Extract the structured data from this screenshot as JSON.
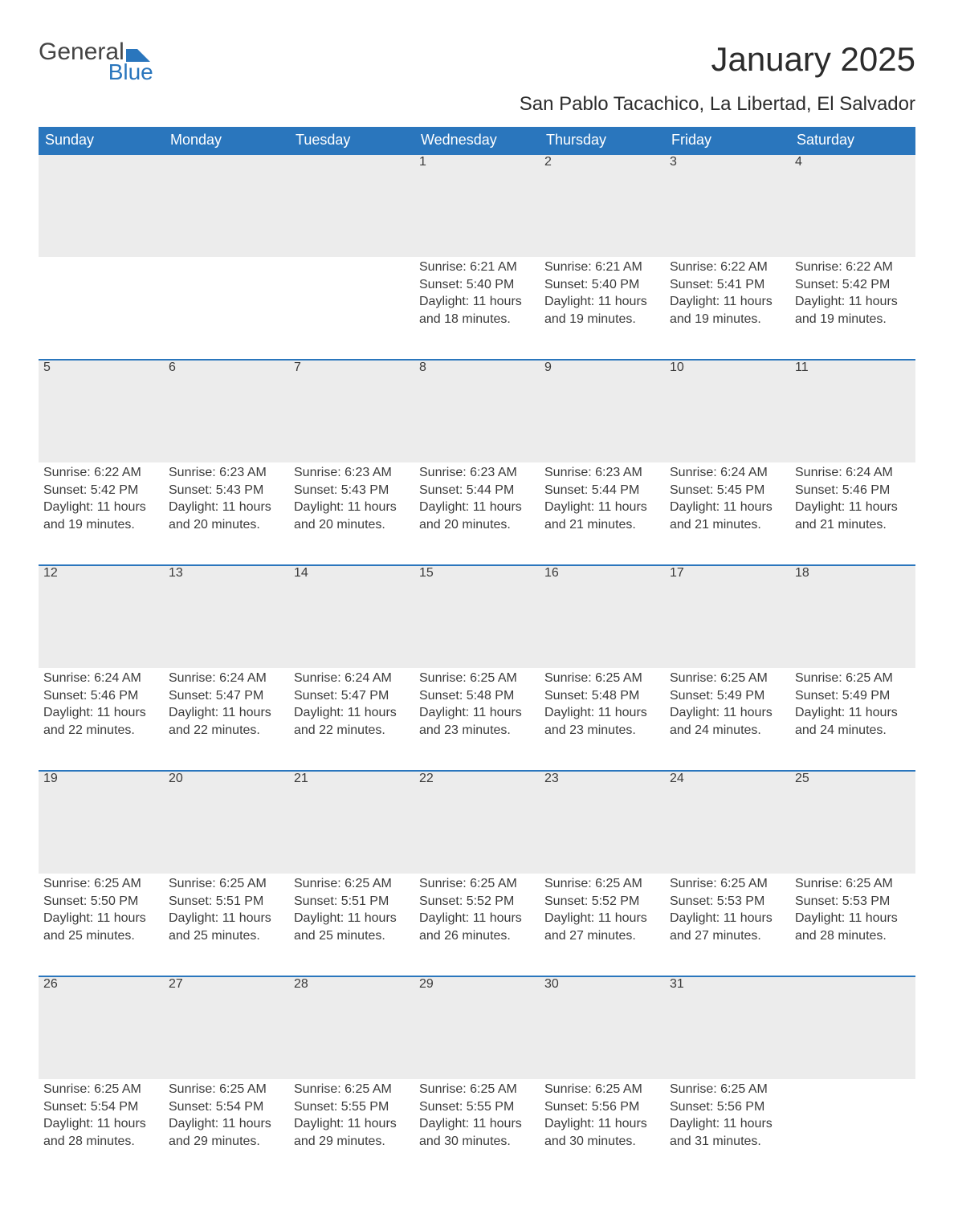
{
  "brand": {
    "part1": "General",
    "part2": "Blue",
    "flag_color": "#2a76bd"
  },
  "title": "January 2025",
  "location": "San Pablo Tacachico, La Libertad, El Salvador",
  "colors": {
    "header_bg": "#2a76bd",
    "header_text": "#ffffff",
    "daynum_bg": "#ececec",
    "daynum_border": "#2a76bd",
    "body_text": "#3b3b3b",
    "page_bg": "#ffffff"
  },
  "typography": {
    "title_fontsize": 42,
    "location_fontsize": 24,
    "dayheader_fontsize": 18,
    "body_fontsize": 16
  },
  "layout": {
    "columns": 7,
    "rows": 5,
    "first_weekday_index": 3
  },
  "weekdays": [
    "Sunday",
    "Monday",
    "Tuesday",
    "Wednesday",
    "Thursday",
    "Friday",
    "Saturday"
  ],
  "days": [
    {
      "n": 1,
      "sunrise": "6:21 AM",
      "sunset": "5:40 PM",
      "daylight": "11 hours and 18 minutes."
    },
    {
      "n": 2,
      "sunrise": "6:21 AM",
      "sunset": "5:40 PM",
      "daylight": "11 hours and 19 minutes."
    },
    {
      "n": 3,
      "sunrise": "6:22 AM",
      "sunset": "5:41 PM",
      "daylight": "11 hours and 19 minutes."
    },
    {
      "n": 4,
      "sunrise": "6:22 AM",
      "sunset": "5:42 PM",
      "daylight": "11 hours and 19 minutes."
    },
    {
      "n": 5,
      "sunrise": "6:22 AM",
      "sunset": "5:42 PM",
      "daylight": "11 hours and 19 minutes."
    },
    {
      "n": 6,
      "sunrise": "6:23 AM",
      "sunset": "5:43 PM",
      "daylight": "11 hours and 20 minutes."
    },
    {
      "n": 7,
      "sunrise": "6:23 AM",
      "sunset": "5:43 PM",
      "daylight": "11 hours and 20 minutes."
    },
    {
      "n": 8,
      "sunrise": "6:23 AM",
      "sunset": "5:44 PM",
      "daylight": "11 hours and 20 minutes."
    },
    {
      "n": 9,
      "sunrise": "6:23 AM",
      "sunset": "5:44 PM",
      "daylight": "11 hours and 21 minutes."
    },
    {
      "n": 10,
      "sunrise": "6:24 AM",
      "sunset": "5:45 PM",
      "daylight": "11 hours and 21 minutes."
    },
    {
      "n": 11,
      "sunrise": "6:24 AM",
      "sunset": "5:46 PM",
      "daylight": "11 hours and 21 minutes."
    },
    {
      "n": 12,
      "sunrise": "6:24 AM",
      "sunset": "5:46 PM",
      "daylight": "11 hours and 22 minutes."
    },
    {
      "n": 13,
      "sunrise": "6:24 AM",
      "sunset": "5:47 PM",
      "daylight": "11 hours and 22 minutes."
    },
    {
      "n": 14,
      "sunrise": "6:24 AM",
      "sunset": "5:47 PM",
      "daylight": "11 hours and 22 minutes."
    },
    {
      "n": 15,
      "sunrise": "6:25 AM",
      "sunset": "5:48 PM",
      "daylight": "11 hours and 23 minutes."
    },
    {
      "n": 16,
      "sunrise": "6:25 AM",
      "sunset": "5:48 PM",
      "daylight": "11 hours and 23 minutes."
    },
    {
      "n": 17,
      "sunrise": "6:25 AM",
      "sunset": "5:49 PM",
      "daylight": "11 hours and 24 minutes."
    },
    {
      "n": 18,
      "sunrise": "6:25 AM",
      "sunset": "5:49 PM",
      "daylight": "11 hours and 24 minutes."
    },
    {
      "n": 19,
      "sunrise": "6:25 AM",
      "sunset": "5:50 PM",
      "daylight": "11 hours and 25 minutes."
    },
    {
      "n": 20,
      "sunrise": "6:25 AM",
      "sunset": "5:51 PM",
      "daylight": "11 hours and 25 minutes."
    },
    {
      "n": 21,
      "sunrise": "6:25 AM",
      "sunset": "5:51 PM",
      "daylight": "11 hours and 25 minutes."
    },
    {
      "n": 22,
      "sunrise": "6:25 AM",
      "sunset": "5:52 PM",
      "daylight": "11 hours and 26 minutes."
    },
    {
      "n": 23,
      "sunrise": "6:25 AM",
      "sunset": "5:52 PM",
      "daylight": "11 hours and 27 minutes."
    },
    {
      "n": 24,
      "sunrise": "6:25 AM",
      "sunset": "5:53 PM",
      "daylight": "11 hours and 27 minutes."
    },
    {
      "n": 25,
      "sunrise": "6:25 AM",
      "sunset": "5:53 PM",
      "daylight": "11 hours and 28 minutes."
    },
    {
      "n": 26,
      "sunrise": "6:25 AM",
      "sunset": "5:54 PM",
      "daylight": "11 hours and 28 minutes."
    },
    {
      "n": 27,
      "sunrise": "6:25 AM",
      "sunset": "5:54 PM",
      "daylight": "11 hours and 29 minutes."
    },
    {
      "n": 28,
      "sunrise": "6:25 AM",
      "sunset": "5:55 PM",
      "daylight": "11 hours and 29 minutes."
    },
    {
      "n": 29,
      "sunrise": "6:25 AM",
      "sunset": "5:55 PM",
      "daylight": "11 hours and 30 minutes."
    },
    {
      "n": 30,
      "sunrise": "6:25 AM",
      "sunset": "5:56 PM",
      "daylight": "11 hours and 30 minutes."
    },
    {
      "n": 31,
      "sunrise": "6:25 AM",
      "sunset": "5:56 PM",
      "daylight": "11 hours and 31 minutes."
    }
  ],
  "labels": {
    "sunrise": "Sunrise:",
    "sunset": "Sunset:",
    "daylight": "Daylight:"
  }
}
